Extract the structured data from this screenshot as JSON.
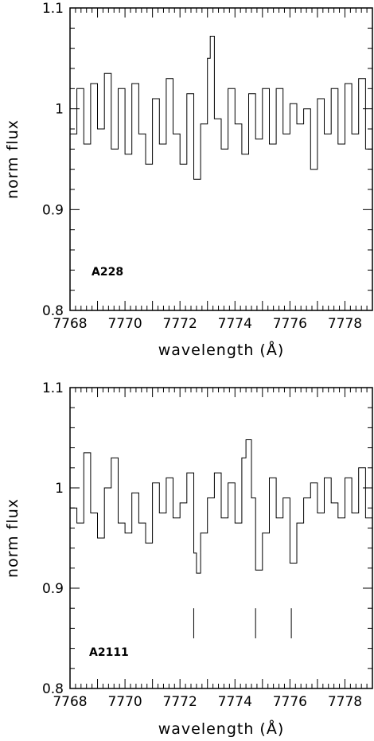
{
  "chart_data": [
    {
      "type": "line",
      "panel_label": "A228",
      "xlabel": "wavelength (Å)",
      "ylabel": "norm flux",
      "xlim": [
        7768,
        7779
      ],
      "ylim": [
        0.8,
        1.1
      ],
      "xticks": [
        "7768",
        "7770",
        "7772",
        "7774",
        "7776",
        "7778"
      ],
      "yticks": [
        "0.8",
        "0.9",
        "1",
        "1.1"
      ],
      "grid": false,
      "series": [
        {
          "x": [
            7768.0,
            7768.25,
            7768.5,
            7768.75,
            7769.0,
            7769.25,
            7769.5,
            7769.75,
            7770.0,
            7770.25,
            7770.5,
            7770.75,
            7771.0,
            7771.25,
            7771.5,
            7771.75,
            7772.0,
            7772.25,
            7772.5,
            7772.75,
            7773.0,
            7773.1,
            7773.25,
            7773.5,
            7773.75,
            7774.0,
            7774.25,
            7774.5,
            7774.75,
            7775.0,
            7775.25,
            7775.5,
            7775.75,
            7776.0,
            7776.25,
            7776.5,
            7776.75,
            7777.0,
            7777.25,
            7777.5,
            7777.75,
            7778.0,
            7778.25,
            7778.5,
            7778.75,
            7779.0
          ],
          "y": [
            0.975,
            1.02,
            0.965,
            1.025,
            0.98,
            1.035,
            0.96,
            1.02,
            0.955,
            1.025,
            0.975,
            0.945,
            1.01,
            0.965,
            1.03,
            0.975,
            0.945,
            1.015,
            0.93,
            0.985,
            1.05,
            1.072,
            0.99,
            0.96,
            1.02,
            0.985,
            0.955,
            1.015,
            0.97,
            1.02,
            0.965,
            1.02,
            0.975,
            1.005,
            0.985,
            1.0,
            0.94,
            1.01,
            0.975,
            1.02,
            0.965,
            1.025,
            0.975,
            1.03,
            0.96,
            1.0
          ]
        }
      ],
      "markers": []
    },
    {
      "type": "line",
      "panel_label": "A2111",
      "xlabel": "wavelength (Å)",
      "ylabel": "norm flux",
      "xlim": [
        7768,
        7779
      ],
      "ylim": [
        0.8,
        1.1
      ],
      "xticks": [
        "7768",
        "7770",
        "7772",
        "7774",
        "7776",
        "7778"
      ],
      "yticks": [
        "0.8",
        "0.9",
        "1",
        "1.1"
      ],
      "grid": false,
      "series": [
        {
          "x": [
            7768.0,
            7768.25,
            7768.5,
            7768.75,
            7769.0,
            7769.25,
            7769.5,
            7769.75,
            7770.0,
            7770.25,
            7770.5,
            7770.75,
            7771.0,
            7771.25,
            7771.5,
            7771.75,
            7772.0,
            7772.25,
            7772.5,
            7772.6,
            7772.75,
            7773.0,
            7773.25,
            7773.5,
            7773.75,
            7774.0,
            7774.25,
            7774.4,
            7774.6,
            7774.75,
            7775.0,
            7775.25,
            7775.5,
            7775.75,
            7776.0,
            7776.25,
            7776.5,
            7776.75,
            7777.0,
            7777.25,
            7777.5,
            7777.75,
            7778.0,
            7778.25,
            7778.5,
            7778.75,
            7779.0
          ],
          "y": [
            0.98,
            0.965,
            1.035,
            0.975,
            0.95,
            1.0,
            1.03,
            0.965,
            0.955,
            0.995,
            0.965,
            0.945,
            1.005,
            0.975,
            1.01,
            0.97,
            0.985,
            1.015,
            0.935,
            0.915,
            0.955,
            0.99,
            1.015,
            0.97,
            1.005,
            0.965,
            1.03,
            1.048,
            0.99,
            0.918,
            0.955,
            1.01,
            0.97,
            0.99,
            0.925,
            0.965,
            0.99,
            1.005,
            0.975,
            1.01,
            0.985,
            0.97,
            1.01,
            0.975,
            1.02,
            0.97,
            0.985
          ]
        }
      ],
      "markers": [
        {
          "x": 7772.5,
          "y_from": 0.85,
          "y_to": 0.88
        },
        {
          "x": 7774.75,
          "y_from": 0.85,
          "y_to": 0.88
        },
        {
          "x": 7776.05,
          "y_from": 0.85,
          "y_to": 0.88
        }
      ]
    }
  ]
}
